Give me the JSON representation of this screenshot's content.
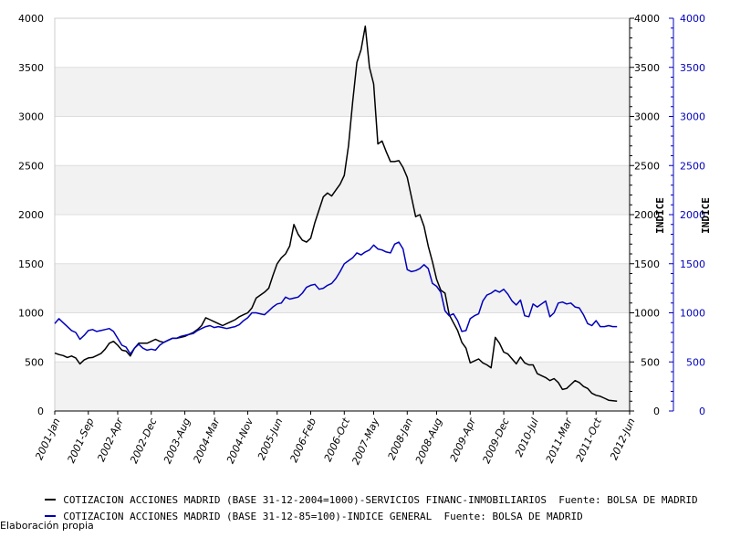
{
  "chart_data": {
    "type": "line",
    "x_tick_labels": [
      "2001-Jan",
      "2001-Sep",
      "2002-Apr",
      "2002-Dec",
      "2003-Aug",
      "2004-Mar",
      "2004-Nov",
      "2005-Jun",
      "2006-Feb",
      "2006-Oct",
      "2007-May",
      "2008-Jan",
      "2008-Aug",
      "2009-Apr",
      "2009-Dec",
      "2010-Jul",
      "2011-Mar",
      "2011-Oct",
      "2012-Jun"
    ],
    "x_range": [
      "2001-Jan",
      "2012-Jun"
    ],
    "ylim_left": [
      0,
      4000
    ],
    "ylim_right": [
      0,
      4000
    ],
    "y_ticks": [
      0,
      500,
      1000,
      1500,
      2000,
      2500,
      3000,
      3500,
      4000
    ],
    "ylabel_right_1": "INDICE",
    "ylabel_right_2": "INDICE",
    "series": [
      {
        "name": "COTIZACION ACCIONES MADRID (BASE 31-12-2004=1000)-SERVICIOS FINANC-INMOBILIARIOS  Fuente: BOLSA DE MADRID",
        "color": "#000000",
        "axis": "left",
        "points": [
          [
            "2001-01",
            590
          ],
          [
            "2001-02",
            575
          ],
          [
            "2001-03",
            565
          ],
          [
            "2001-04",
            545
          ],
          [
            "2001-05",
            560
          ],
          [
            "2001-06",
            540
          ],
          [
            "2001-07",
            480
          ],
          [
            "2001-08",
            520
          ],
          [
            "2001-09",
            540
          ],
          [
            "2001-10",
            545
          ],
          [
            "2001-11",
            565
          ],
          [
            "2001-12",
            585
          ],
          [
            "2002-01",
            630
          ],
          [
            "2002-02",
            690
          ],
          [
            "2002-03",
            710
          ],
          [
            "2002-04",
            670
          ],
          [
            "2002-05",
            620
          ],
          [
            "2002-06",
            610
          ],
          [
            "2002-07",
            560
          ],
          [
            "2002-08",
            640
          ],
          [
            "2002-09",
            690
          ],
          [
            "2002-10",
            690
          ],
          [
            "2002-11",
            690
          ],
          [
            "2002-12",
            710
          ],
          [
            "2003-01",
            730
          ],
          [
            "2003-02",
            710
          ],
          [
            "2003-03",
            700
          ],
          [
            "2003-04",
            720
          ],
          [
            "2003-05",
            740
          ],
          [
            "2003-06",
            740
          ],
          [
            "2003-07",
            750
          ],
          [
            "2003-08",
            760
          ],
          [
            "2003-09",
            780
          ],
          [
            "2003-10",
            800
          ],
          [
            "2003-11",
            830
          ],
          [
            "2003-12",
            870
          ],
          [
            "2004-01",
            950
          ],
          [
            "2004-02",
            930
          ],
          [
            "2004-03",
            910
          ],
          [
            "2004-04",
            890
          ],
          [
            "2004-05",
            870
          ],
          [
            "2004-06",
            890
          ],
          [
            "2004-07",
            910
          ],
          [
            "2004-08",
            930
          ],
          [
            "2004-09",
            960
          ],
          [
            "2004-10",
            980
          ],
          [
            "2004-11",
            1000
          ],
          [
            "2004-12",
            1050
          ],
          [
            "2005-01",
            1150
          ],
          [
            "2005-02",
            1180
          ],
          [
            "2005-03",
            1210
          ],
          [
            "2005-04",
            1250
          ],
          [
            "2005-05",
            1380
          ],
          [
            "2005-06",
            1500
          ],
          [
            "2005-07",
            1560
          ],
          [
            "2005-08",
            1600
          ],
          [
            "2005-09",
            1680
          ],
          [
            "2005-10",
            1900
          ],
          [
            "2005-11",
            1800
          ],
          [
            "2005-12",
            1740
          ],
          [
            "2006-01",
            1720
          ],
          [
            "2006-02",
            1760
          ],
          [
            "2006-03",
            1920
          ],
          [
            "2006-04",
            2050
          ],
          [
            "2006-05",
            2180
          ],
          [
            "2006-06",
            2220
          ],
          [
            "2006-07",
            2190
          ],
          [
            "2006-08",
            2250
          ],
          [
            "2006-09",
            2310
          ],
          [
            "2006-10",
            2400
          ],
          [
            "2006-11",
            2700
          ],
          [
            "2006-12",
            3150
          ],
          [
            "2007-01",
            3550
          ],
          [
            "2007-02",
            3680
          ],
          [
            "2007-03",
            3920
          ],
          [
            "2007-04",
            3500
          ],
          [
            "2007-05",
            3330
          ],
          [
            "2007-06",
            2720
          ],
          [
            "2007-07",
            2750
          ],
          [
            "2007-08",
            2640
          ],
          [
            "2007-09",
            2540
          ],
          [
            "2007-10",
            2540
          ],
          [
            "2007-11",
            2550
          ],
          [
            "2007-12",
            2480
          ],
          [
            "2008-01",
            2380
          ],
          [
            "2008-02",
            2180
          ],
          [
            "2008-03",
            1980
          ],
          [
            "2008-04",
            2000
          ],
          [
            "2008-05",
            1880
          ],
          [
            "2008-06",
            1680
          ],
          [
            "2008-07",
            1520
          ],
          [
            "2008-08",
            1340
          ],
          [
            "2008-09",
            1230
          ],
          [
            "2008-10",
            1200
          ],
          [
            "2008-11",
            980
          ],
          [
            "2008-12",
            900
          ],
          [
            "2009-01",
            820
          ],
          [
            "2009-02",
            700
          ],
          [
            "2009-03",
            640
          ],
          [
            "2009-04",
            490
          ],
          [
            "2009-05",
            510
          ],
          [
            "2009-06",
            530
          ],
          [
            "2009-07",
            490
          ],
          [
            "2009-08",
            470
          ],
          [
            "2009-09",
            440
          ],
          [
            "2009-10",
            750
          ],
          [
            "2009-11",
            690
          ],
          [
            "2009-12",
            600
          ],
          [
            "2010-01",
            580
          ],
          [
            "2010-02",
            530
          ],
          [
            "2010-03",
            480
          ],
          [
            "2010-04",
            550
          ],
          [
            "2010-05",
            490
          ],
          [
            "2010-06",
            470
          ],
          [
            "2010-07",
            470
          ],
          [
            "2010-08",
            380
          ],
          [
            "2010-09",
            360
          ],
          [
            "2010-10",
            340
          ],
          [
            "2010-11",
            310
          ],
          [
            "2010-12",
            330
          ],
          [
            "2011-01",
            290
          ],
          [
            "2011-02",
            220
          ],
          [
            "2011-03",
            230
          ],
          [
            "2011-04",
            270
          ],
          [
            "2011-05",
            310
          ],
          [
            "2011-06",
            290
          ],
          [
            "2011-07",
            250
          ],
          [
            "2011-08",
            230
          ],
          [
            "2011-09",
            180
          ],
          [
            "2011-10",
            160
          ],
          [
            "2011-11",
            150
          ],
          [
            "2011-12",
            130
          ],
          [
            "2012-01",
            110
          ],
          [
            "2012-02",
            105
          ],
          [
            "2012-03",
            100
          ]
        ]
      },
      {
        "name": "COTIZACION ACCIONES MADRID (BASE 31-12-85=100)-INDICE GENERAL  Fuente: BOLSA DE MADRID",
        "color": "#0000bb",
        "axis": "right",
        "points": [
          [
            "2001-01",
            890
          ],
          [
            "2001-02",
            940
          ],
          [
            "2001-03",
            900
          ],
          [
            "2001-04",
            860
          ],
          [
            "2001-05",
            820
          ],
          [
            "2001-06",
            800
          ],
          [
            "2001-07",
            730
          ],
          [
            "2001-08",
            770
          ],
          [
            "2001-09",
            820
          ],
          [
            "2001-10",
            830
          ],
          [
            "2001-11",
            810
          ],
          [
            "2001-12",
            820
          ],
          [
            "2002-01",
            830
          ],
          [
            "2002-02",
            840
          ],
          [
            "2002-03",
            810
          ],
          [
            "2002-04",
            740
          ],
          [
            "2002-05",
            670
          ],
          [
            "2002-06",
            650
          ],
          [
            "2002-07",
            580
          ],
          [
            "2002-08",
            640
          ],
          [
            "2002-09",
            680
          ],
          [
            "2002-10",
            640
          ],
          [
            "2002-11",
            620
          ],
          [
            "2002-12",
            630
          ],
          [
            "2003-01",
            620
          ],
          [
            "2003-02",
            670
          ],
          [
            "2003-03",
            700
          ],
          [
            "2003-04",
            720
          ],
          [
            "2003-05",
            740
          ],
          [
            "2003-06",
            740
          ],
          [
            "2003-07",
            760
          ],
          [
            "2003-08",
            770
          ],
          [
            "2003-09",
            780
          ],
          [
            "2003-10",
            790
          ],
          [
            "2003-11",
            820
          ],
          [
            "2003-12",
            840
          ],
          [
            "2004-01",
            860
          ],
          [
            "2004-02",
            870
          ],
          [
            "2004-03",
            850
          ],
          [
            "2004-04",
            860
          ],
          [
            "2004-05",
            850
          ],
          [
            "2004-06",
            840
          ],
          [
            "2004-07",
            850
          ],
          [
            "2004-08",
            860
          ],
          [
            "2004-09",
            880
          ],
          [
            "2004-10",
            920
          ],
          [
            "2004-11",
            950
          ],
          [
            "2004-12",
            1000
          ],
          [
            "2005-01",
            1000
          ],
          [
            "2005-02",
            990
          ],
          [
            "2005-03",
            980
          ],
          [
            "2005-04",
            1020
          ],
          [
            "2005-05",
            1060
          ],
          [
            "2005-06",
            1090
          ],
          [
            "2005-07",
            1100
          ],
          [
            "2005-08",
            1160
          ],
          [
            "2005-09",
            1140
          ],
          [
            "2005-10",
            1150
          ],
          [
            "2005-11",
            1160
          ],
          [
            "2005-12",
            1200
          ],
          [
            "2006-01",
            1260
          ],
          [
            "2006-02",
            1280
          ],
          [
            "2006-03",
            1290
          ],
          [
            "2006-04",
            1240
          ],
          [
            "2006-05",
            1250
          ],
          [
            "2006-06",
            1280
          ],
          [
            "2006-07",
            1300
          ],
          [
            "2006-08",
            1350
          ],
          [
            "2006-09",
            1420
          ],
          [
            "2006-10",
            1500
          ],
          [
            "2006-11",
            1530
          ],
          [
            "2006-12",
            1560
          ],
          [
            "2007-01",
            1610
          ],
          [
            "2007-02",
            1590
          ],
          [
            "2007-03",
            1620
          ],
          [
            "2007-04",
            1640
          ],
          [
            "2007-05",
            1690
          ],
          [
            "2007-06",
            1650
          ],
          [
            "2007-07",
            1640
          ],
          [
            "2007-08",
            1620
          ],
          [
            "2007-09",
            1610
          ],
          [
            "2007-10",
            1700
          ],
          [
            "2007-11",
            1720
          ],
          [
            "2007-12",
            1650
          ],
          [
            "2008-01",
            1440
          ],
          [
            "2008-02",
            1420
          ],
          [
            "2008-03",
            1430
          ],
          [
            "2008-04",
            1450
          ],
          [
            "2008-05",
            1490
          ],
          [
            "2008-06",
            1450
          ],
          [
            "2008-07",
            1300
          ],
          [
            "2008-08",
            1270
          ],
          [
            "2008-09",
            1210
          ],
          [
            "2008-10",
            1020
          ],
          [
            "2008-11",
            970
          ],
          [
            "2008-12",
            990
          ],
          [
            "2009-01",
            920
          ],
          [
            "2009-02",
            810
          ],
          [
            "2009-03",
            820
          ],
          [
            "2009-04",
            940
          ],
          [
            "2009-05",
            970
          ],
          [
            "2009-06",
            990
          ],
          [
            "2009-07",
            1120
          ],
          [
            "2009-08",
            1180
          ],
          [
            "2009-09",
            1200
          ],
          [
            "2009-10",
            1230
          ],
          [
            "2009-11",
            1210
          ],
          [
            "2009-12",
            1240
          ],
          [
            "2010-01",
            1190
          ],
          [
            "2010-02",
            1120
          ],
          [
            "2010-03",
            1080
          ],
          [
            "2010-04",
            1130
          ],
          [
            "2010-05",
            970
          ],
          [
            "2010-06",
            960
          ],
          [
            "2010-07",
            1090
          ],
          [
            "2010-08",
            1060
          ],
          [
            "2010-09",
            1090
          ],
          [
            "2010-10",
            1120
          ],
          [
            "2010-11",
            960
          ],
          [
            "2010-12",
            1000
          ],
          [
            "2011-01",
            1100
          ],
          [
            "2011-02",
            1110
          ],
          [
            "2011-03",
            1090
          ],
          [
            "2011-04",
            1100
          ],
          [
            "2011-05",
            1060
          ],
          [
            "2011-06",
            1050
          ],
          [
            "2011-07",
            980
          ],
          [
            "2011-08",
            890
          ],
          [
            "2011-09",
            870
          ],
          [
            "2011-10",
            920
          ],
          [
            "2011-11",
            860
          ],
          [
            "2011-12",
            860
          ],
          [
            "2012-01",
            870
          ],
          [
            "2012-02",
            860
          ],
          [
            "2012-03",
            860
          ]
        ]
      }
    ]
  },
  "legend": {
    "series_1": "COTIZACION ACCIONES MADRID (BASE 31-12-2004=1000)-SERVICIOS FINANC-INMOBILIARIOS  Fuente: BOLSA DE MADRID",
    "series_2": "COTIZACION ACCIONES MADRID (BASE 31-12-85=100)-INDICE GENERAL  Fuente: BOLSA DE MADRID",
    "series_1_color": "#000000",
    "series_2_color": "#0000bb"
  },
  "footer": {
    "source_note": "Elaboración propia"
  }
}
